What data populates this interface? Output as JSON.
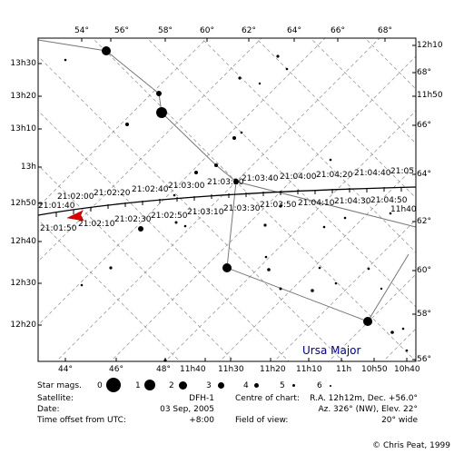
{
  "chart": {
    "top_labels": [
      "54°",
      "56°",
      "58°",
      "60°",
      "62°",
      "64°",
      "66°",
      "68°"
    ],
    "bottom_labels": [
      "44°",
      "46°",
      "48°",
      "11h40",
      "11h30",
      "11h20",
      "11h10",
      "11h",
      "10h50",
      "10h40"
    ],
    "left_labels": [
      "13h30",
      "13h20",
      "13h10",
      "13h",
      "12h50",
      "12h40",
      "12h30",
      "12h20"
    ],
    "right_labels": [
      "12h10",
      "68°",
      "11h50",
      "66°",
      "64°",
      "62°",
      "60°",
      "58°",
      "56°"
    ],
    "right_inline_labels": [
      "12h05",
      "11h40"
    ],
    "track_upper_labels": [
      "21:02:00",
      "21:02:20",
      "21:02:40",
      "21:03:00",
      "21:03:20",
      "21:03:40",
      "21:04:00",
      "21:04:20",
      "21:04:40",
      "21:05"
    ],
    "track_lower_labels": [
      "21:01:50",
      "21:02:10",
      "21:02:30",
      "21:02:50",
      "21:03:10",
      "21:03:30",
      "21:03:50",
      "21:04:10",
      "21:04:30",
      "21:04:50"
    ],
    "track_start_label": "21:01:40",
    "constellation": "Ursa Major",
    "colors": {
      "grid": "#9a9a9a",
      "track": "#000000",
      "marker": "#dd0000",
      "constellation": "#000080"
    }
  },
  "legend": {
    "title": "Star mags.",
    "magnitudes": [
      "0",
      "1",
      "2",
      "3",
      "4",
      "5",
      "6"
    ]
  },
  "info": {
    "satellite_label": "Satellite:",
    "satellite": "DFH-1",
    "date_label": "Date:",
    "date": "03 Sep, 2005",
    "utc_label": "Time offset from UTC:",
    "utc": "+8:00",
    "centre_label": "Centre of chart:",
    "centre_ra_dec": "R.A. 12h12m, Dec. +56.0°",
    "centre_az_el": "Az. 326° (NW), Elev. 22°",
    "fov_label": "Field of view:",
    "fov": "20° wide"
  },
  "copyright": "© Chris Peat, 1999"
}
